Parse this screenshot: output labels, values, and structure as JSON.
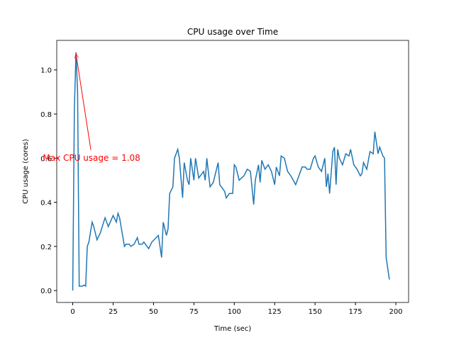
{
  "chart_data": {
    "type": "line",
    "title": "CPU usage over Time",
    "x_label": "Time (sec)",
    "y_label": "CPU usage (cores)",
    "x": [
      0,
      1,
      2,
      3,
      4,
      6,
      7,
      8,
      9,
      10,
      12,
      13,
      15,
      17,
      20,
      22,
      25,
      27,
      28,
      29,
      32,
      33,
      35,
      36,
      38,
      40,
      41,
      43,
      44,
      47,
      49,
      53,
      55,
      56,
      58,
      59,
      60,
      62,
      63,
      65,
      66,
      68,
      69,
      71,
      72,
      73,
      75,
      76,
      78,
      79,
      81,
      82,
      83,
      85,
      87,
      90,
      91,
      94,
      95,
      97,
      99,
      100,
      101,
      103,
      106,
      108,
      110,
      112,
      113,
      115,
      116,
      117,
      119,
      121,
      123,
      125,
      126,
      128,
      129,
      131,
      133,
      135,
      138,
      140,
      142,
      144,
      145,
      147,
      149,
      150,
      152,
      154,
      156,
      157,
      158,
      159,
      161,
      162,
      163,
      164,
      165,
      167,
      169,
      171,
      172,
      174,
      176,
      178,
      179,
      180,
      182,
      184,
      186,
      187,
      189,
      190,
      192,
      193,
      194,
      196
    ],
    "series": [
      {
        "name": "CPU usage",
        "color": "#1f77b4",
        "values": [
          0,
          0.82,
          1.08,
          0.9,
          0.02,
          0.02,
          0.025,
          0.02,
          0.2,
          0.22,
          0.31,
          0.29,
          0.23,
          0.26,
          0.33,
          0.29,
          0.34,
          0.31,
          0.35,
          0.33,
          0.2,
          0.21,
          0.21,
          0.2,
          0.21,
          0.24,
          0.21,
          0.21,
          0.22,
          0.19,
          0.22,
          0.25,
          0.15,
          0.31,
          0.25,
          0.28,
          0.44,
          0.47,
          0.6,
          0.64,
          0.6,
          0.42,
          0.58,
          0.5,
          0.48,
          0.6,
          0.5,
          0.6,
          0.51,
          0.52,
          0.54,
          0.5,
          0.6,
          0.47,
          0.49,
          0.58,
          0.48,
          0.45,
          0.42,
          0.44,
          0.44,
          0.57,
          0.56,
          0.5,
          0.52,
          0.55,
          0.54,
          0.39,
          0.5,
          0.57,
          0.49,
          0.59,
          0.55,
          0.57,
          0.54,
          0.48,
          0.56,
          0.52,
          0.61,
          0.6,
          0.54,
          0.52,
          0.48,
          0.52,
          0.56,
          0.56,
          0.55,
          0.55,
          0.6,
          0.61,
          0.56,
          0.54,
          0.6,
          0.47,
          0.53,
          0.44,
          0.63,
          0.65,
          0.48,
          0.64,
          0.6,
          0.57,
          0.62,
          0.61,
          0.64,
          0.57,
          0.55,
          0.52,
          0.53,
          0.58,
          0.55,
          0.63,
          0.62,
          0.72,
          0.62,
          0.65,
          0.61,
          0.6,
          0.15,
          0.05
        ]
      }
    ],
    "annotation": {
      "text": "Max CPU usage = 1.08",
      "color": "red"
    },
    "xlim": [
      -9.9,
      207.9
    ],
    "xticks": [
      0,
      25,
      50,
      75,
      100,
      125,
      150,
      175,
      200
    ],
    "ylim": [
      -0.054,
      1.134
    ],
    "yticks": [
      {
        "value": 0,
        "label": "0.0"
      },
      0.2,
      0.4,
      0.6,
      0.8,
      {
        "value": 1,
        "label": "1.0"
      }
    ]
  }
}
